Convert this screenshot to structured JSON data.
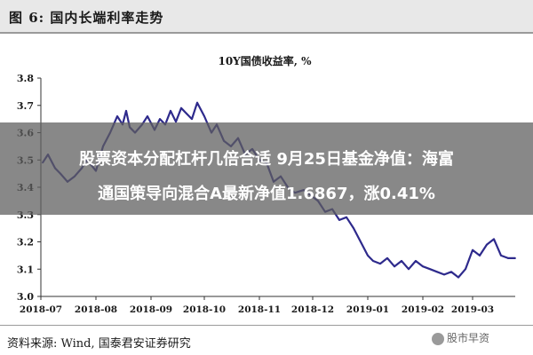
{
  "figure": {
    "label": "图 6:  国内长端利率走势"
  },
  "overlay": {
    "line1": "股票资本分配杠杆几倍合适 9月25日基金净值：海富",
    "line2": "通国策导向混合A最新净值1.6867，涨0.41%"
  },
  "footer": {
    "source": "资料来源:  Wind,  国泰君安证券研究",
    "watermark": "股市早资"
  },
  "chart_data": {
    "type": "line",
    "title": "10Y国债收益率,  %",
    "xlabel": "",
    "ylabel": "",
    "ylim": [
      3.0,
      3.8
    ],
    "yticks": [
      "3.0",
      "3.1",
      "3.2",
      "3.3",
      "3.4",
      "3.5",
      "3.6",
      "3.7",
      "3.8"
    ],
    "xlim": [
      "2018-07-01",
      "2019-03-25"
    ],
    "xticks": [
      "2018-07",
      "2018-08",
      "2018-09",
      "2018-10",
      "2018-11",
      "2018-12",
      "2019-01",
      "2019-02",
      "2019-03"
    ],
    "grid": false,
    "legend": "none",
    "color": "#2e2a8c",
    "series": [
      {
        "x": [
          "2018-07-02",
          "2018-07-05",
          "2018-07-09",
          "2018-07-12",
          "2018-07-16",
          "2018-07-20",
          "2018-07-24",
          "2018-07-27",
          "2018-08-01",
          "2018-08-05",
          "2018-08-09",
          "2018-08-13",
          "2018-08-16",
          "2018-08-18",
          "2018-08-20",
          "2018-08-23",
          "2018-08-27",
          "2018-08-30",
          "2018-09-03",
          "2018-09-06",
          "2018-09-09",
          "2018-09-12",
          "2018-09-15",
          "2018-09-18",
          "2018-09-21",
          "2018-09-24",
          "2018-09-27",
          "2018-10-01",
          "2018-10-05",
          "2018-10-08",
          "2018-10-12",
          "2018-10-16",
          "2018-10-20",
          "2018-10-24",
          "2018-10-28",
          "2018-11-01",
          "2018-11-05",
          "2018-11-09",
          "2018-11-13",
          "2018-11-17",
          "2018-11-21",
          "2018-11-26",
          "2018-11-30",
          "2018-12-04",
          "2018-12-08",
          "2018-12-12",
          "2018-12-16",
          "2018-12-20",
          "2018-12-24",
          "2018-12-28",
          "2019-01-01",
          "2019-01-04",
          "2019-01-08",
          "2019-01-12",
          "2019-01-16",
          "2019-01-20",
          "2019-01-24",
          "2019-01-28",
          "2019-02-01",
          "2019-02-05",
          "2019-02-09",
          "2019-02-13",
          "2019-02-17",
          "2019-02-21",
          "2019-02-25",
          "2019-03-01",
          "2019-03-05",
          "2019-03-09",
          "2019-03-13",
          "2019-03-17",
          "2019-03-21",
          "2019-03-25"
        ],
        "y": [
          3.49,
          3.52,
          3.47,
          3.45,
          3.42,
          3.44,
          3.47,
          3.5,
          3.46,
          3.55,
          3.6,
          3.66,
          3.63,
          3.68,
          3.62,
          3.6,
          3.63,
          3.66,
          3.61,
          3.65,
          3.63,
          3.68,
          3.64,
          3.69,
          3.67,
          3.65,
          3.71,
          3.66,
          3.6,
          3.63,
          3.57,
          3.55,
          3.58,
          3.52,
          3.54,
          3.5,
          3.49,
          3.42,
          3.44,
          3.4,
          3.38,
          3.39,
          3.37,
          3.35,
          3.31,
          3.32,
          3.28,
          3.29,
          3.25,
          3.2,
          3.15,
          3.13,
          3.12,
          3.14,
          3.11,
          3.13,
          3.1,
          3.13,
          3.11,
          3.1,
          3.09,
          3.08,
          3.09,
          3.07,
          3.1,
          3.17,
          3.15,
          3.19,
          3.21,
          3.15,
          3.14,
          3.14
        ]
      }
    ]
  }
}
